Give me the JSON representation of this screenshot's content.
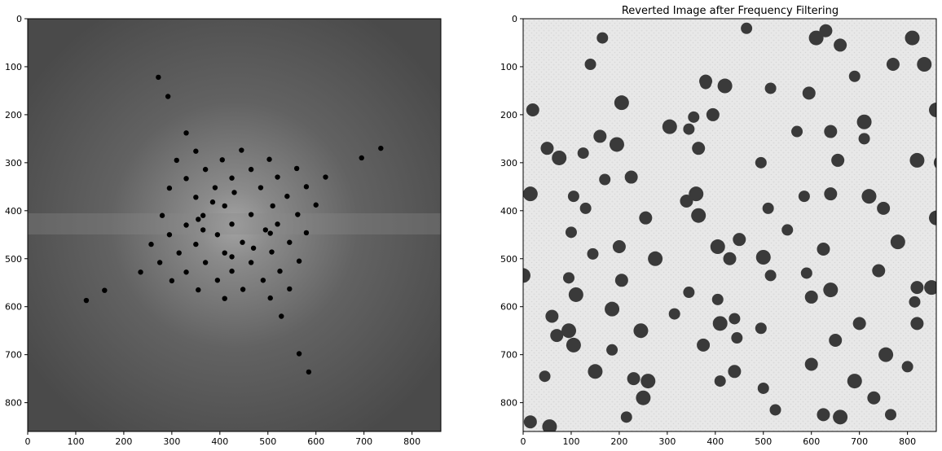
{
  "chart_data": [
    {
      "type": "image",
      "title": "",
      "content": "FFT magnitude spectrum (grayscale) with black notch-filter dots",
      "colors": {
        "background_center": "#9a9a9a",
        "background_edge": "#4a4a4a",
        "dots": "#000000"
      },
      "xlim": [
        0,
        860
      ],
      "ylim": [
        860,
        0
      ],
      "xticks": [
        0,
        100,
        200,
        300,
        400,
        500,
        600,
        700,
        800
      ],
      "yticks": [
        0,
        100,
        200,
        300,
        400,
        500,
        600,
        700,
        800
      ],
      "notch_points": [
        [
          272,
          122
        ],
        [
          292,
          162
        ],
        [
          330,
          238
        ],
        [
          350,
          276
        ],
        [
          445,
          274
        ],
        [
          310,
          295
        ],
        [
          405,
          294
        ],
        [
          503,
          293
        ],
        [
          695,
          290
        ],
        [
          735,
          270
        ],
        [
          370,
          314
        ],
        [
          465,
          314
        ],
        [
          560,
          312
        ],
        [
          330,
          333
        ],
        [
          425,
          332
        ],
        [
          520,
          330
        ],
        [
          620,
          330
        ],
        [
          295,
          353
        ],
        [
          390,
          352
        ],
        [
          485,
          352
        ],
        [
          580,
          350
        ],
        [
          350,
          372
        ],
        [
          430,
          362
        ],
        [
          540,
          370
        ],
        [
          385,
          382
        ],
        [
          410,
          390
        ],
        [
          510,
          390
        ],
        [
          600,
          388
        ],
        [
          280,
          410
        ],
        [
          365,
          410
        ],
        [
          355,
          418
        ],
        [
          465,
          408
        ],
        [
          562,
          408
        ],
        [
          330,
          430
        ],
        [
          425,
          428
        ],
        [
          520,
          428
        ],
        [
          365,
          440
        ],
        [
          495,
          440
        ],
        [
          505,
          447
        ],
        [
          295,
          450
        ],
        [
          395,
          450
        ],
        [
          580,
          446
        ],
        [
          257,
          470
        ],
        [
          350,
          470
        ],
        [
          447,
          466
        ],
        [
          545,
          466
        ],
        [
          470,
          478
        ],
        [
          315,
          488
        ],
        [
          410,
          488
        ],
        [
          508,
          486
        ],
        [
          425,
          496
        ],
        [
          275,
          508
        ],
        [
          370,
          508
        ],
        [
          465,
          508
        ],
        [
          565,
          505
        ],
        [
          235,
          528
        ],
        [
          330,
          528
        ],
        [
          425,
          526
        ],
        [
          525,
          526
        ],
        [
          300,
          546
        ],
        [
          395,
          545
        ],
        [
          490,
          545
        ],
        [
          355,
          565
        ],
        [
          448,
          564
        ],
        [
          545,
          563
        ],
        [
          160,
          566
        ],
        [
          410,
          583
        ],
        [
          505,
          582
        ],
        [
          122,
          587
        ],
        [
          528,
          620
        ],
        [
          565,
          698
        ],
        [
          585,
          736
        ]
      ]
    },
    {
      "type": "image",
      "title": "Reverted Image after Frequency Filtering",
      "content": "grayscale photo of dark round particles on a light textured background",
      "colors": {
        "background": "#e6e6e6",
        "particles": "#3a3a3a"
      },
      "xlim": [
        0,
        860
      ],
      "ylim": [
        860,
        0
      ],
      "xticks": [
        0,
        100,
        200,
        300,
        400,
        500,
        600,
        700,
        800
      ],
      "yticks": [
        0,
        100,
        200,
        300,
        400,
        500,
        600,
        700,
        800
      ],
      "blobs": [
        [
          465,
          20
        ],
        [
          630,
          25
        ],
        [
          610,
          40
        ],
        [
          165,
          40
        ],
        [
          660,
          55
        ],
        [
          810,
          40
        ],
        [
          140,
          95
        ],
        [
          770,
          95
        ],
        [
          835,
          95
        ],
        [
          690,
          120
        ],
        [
          380,
          130
        ],
        [
          420,
          140
        ],
        [
          515,
          145
        ],
        [
          595,
          155
        ],
        [
          205,
          175
        ],
        [
          380,
          135
        ],
        [
          20,
          190
        ],
        [
          860,
          190
        ],
        [
          355,
          205
        ],
        [
          395,
          200
        ],
        [
          305,
          225
        ],
        [
          345,
          230
        ],
        [
          160,
          245
        ],
        [
          195,
          262
        ],
        [
          570,
          235
        ],
        [
          640,
          235
        ],
        [
          710,
          215
        ],
        [
          710,
          250
        ],
        [
          50,
          270
        ],
        [
          75,
          290
        ],
        [
          125,
          280
        ],
        [
          365,
          270
        ],
        [
          870,
          300
        ],
        [
          495,
          300
        ],
        [
          655,
          295
        ],
        [
          820,
          295
        ],
        [
          170,
          335
        ],
        [
          225,
          330
        ],
        [
          15,
          365
        ],
        [
          105,
          370
        ],
        [
          340,
          380
        ],
        [
          360,
          365
        ],
        [
          585,
          370
        ],
        [
          640,
          365
        ],
        [
          720,
          370
        ],
        [
          130,
          395
        ],
        [
          255,
          415
        ],
        [
          365,
          410
        ],
        [
          510,
          395
        ],
        [
          750,
          395
        ],
        [
          860,
          415
        ],
        [
          550,
          440
        ],
        [
          450,
          460
        ],
        [
          405,
          475
        ],
        [
          100,
          445
        ],
        [
          200,
          475
        ],
        [
          780,
          465
        ],
        [
          145,
          490
        ],
        [
          430,
          500
        ],
        [
          500,
          497
        ],
        [
          515,
          535
        ],
        [
          625,
          480
        ],
        [
          0,
          535
        ],
        [
          95,
          540
        ],
        [
          205,
          545
        ],
        [
          275,
          500
        ],
        [
          590,
          530
        ],
        [
          740,
          525
        ],
        [
          110,
          575
        ],
        [
          345,
          570
        ],
        [
          820,
          560
        ],
        [
          850,
          560
        ],
        [
          405,
          585
        ],
        [
          600,
          580
        ],
        [
          640,
          565
        ],
        [
          815,
          590
        ],
        [
          60,
          620
        ],
        [
          185,
          605
        ],
        [
          315,
          615
        ],
        [
          820,
          635
        ],
        [
          410,
          635
        ],
        [
          440,
          625
        ],
        [
          70,
          660
        ],
        [
          95,
          650
        ],
        [
          495,
          645
        ],
        [
          700,
          635
        ],
        [
          245,
          650
        ],
        [
          445,
          665
        ],
        [
          375,
          680
        ],
        [
          105,
          680
        ],
        [
          185,
          690
        ],
        [
          650,
          670
        ],
        [
          755,
          700
        ],
        [
          800,
          725
        ],
        [
          440,
          735
        ],
        [
          150,
          735
        ],
        [
          45,
          745
        ],
        [
          230,
          750
        ],
        [
          260,
          755
        ],
        [
          410,
          755
        ],
        [
          600,
          720
        ],
        [
          690,
          755
        ],
        [
          500,
          770
        ],
        [
          730,
          790
        ],
        [
          250,
          790
        ],
        [
          525,
          815
        ],
        [
          15,
          840
        ],
        [
          55,
          850
        ],
        [
          215,
          830
        ],
        [
          625,
          825
        ],
        [
          660,
          830
        ],
        [
          765,
          825
        ]
      ]
    }
  ]
}
